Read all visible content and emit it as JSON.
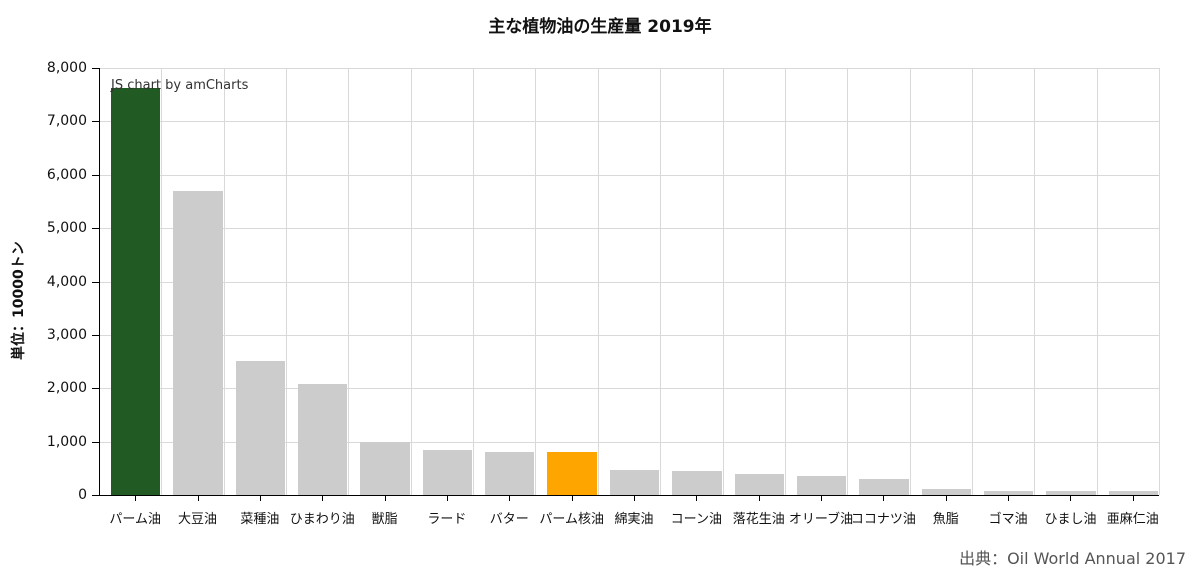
{
  "chart_data": {
    "type": "bar",
    "title": "主な植物油の生産量 2019年",
    "xlabel": "",
    "ylabel": "単位：10000トン",
    "ylim": [
      0,
      8000
    ],
    "yticks": [
      0,
      1000,
      2000,
      3000,
      4000,
      5000,
      6000,
      7000,
      8000
    ],
    "ytick_labels": [
      "0",
      "1,000",
      "2,000",
      "3,000",
      "4,000",
      "5,000",
      "6,000",
      "7,000",
      "8,000"
    ],
    "grid": true,
    "categories": [
      "パーム油",
      "大豆油",
      "菜種油",
      "ひまわり油",
      "獣脂",
      "ラード",
      "バター",
      "パーム核油",
      "綿実油",
      "コーン油",
      "落花生油",
      "オリーブ油",
      "ココナツ油",
      "魚脂",
      "ゴマ油",
      "ひまし油",
      "亜麻仁油"
    ],
    "values": [
      7630,
      5690,
      2510,
      2075,
      1000,
      850,
      805,
      805,
      470,
      450,
      395,
      360,
      295,
      105,
      80,
      80,
      80
    ],
    "colors": [
      "#215a22",
      "#cccccc",
      "#cccccc",
      "#cccccc",
      "#cccccc",
      "#cccccc",
      "#cccccc",
      "#ffa500",
      "#cccccc",
      "#cccccc",
      "#cccccc",
      "#cccccc",
      "#cccccc",
      "#cccccc",
      "#cccccc",
      "#cccccc",
      "#cccccc"
    ],
    "annotations": [
      "JS chart by amCharts"
    ],
    "source": "出典：Oil World Annual 2017",
    "legend": null
  }
}
